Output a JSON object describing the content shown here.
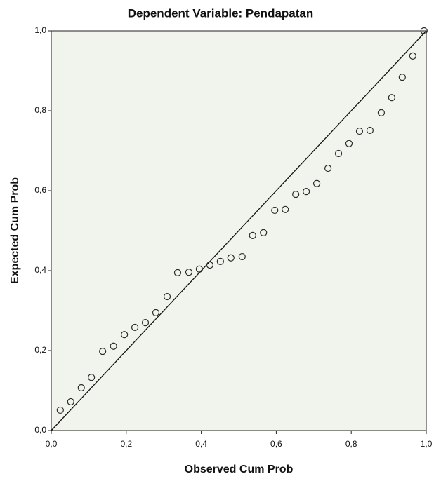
{
  "chart_data": {
    "type": "scatter",
    "title": "Dependent Variable: Pendapatan",
    "xlabel": "Observed Cum Prob",
    "ylabel": "Expected Cum Prob",
    "x": [
      0.024,
      0.052,
      0.08,
      0.107,
      0.137,
      0.166,
      0.195,
      0.223,
      0.251,
      0.279,
      0.309,
      0.337,
      0.367,
      0.395,
      0.423,
      0.451,
      0.479,
      0.509,
      0.537,
      0.566,
      0.596,
      0.624,
      0.652,
      0.68,
      0.708,
      0.738,
      0.766,
      0.794,
      0.822,
      0.85,
      0.88,
      0.908,
      0.936,
      0.964,
      0.994
    ],
    "values": [
      0.051,
      0.072,
      0.107,
      0.133,
      0.198,
      0.211,
      0.24,
      0.258,
      0.27,
      0.295,
      0.335,
      0.395,
      0.396,
      0.404,
      0.414,
      0.423,
      0.432,
      0.435,
      0.488,
      0.495,
      0.551,
      0.553,
      0.591,
      0.598,
      0.618,
      0.656,
      0.693,
      0.718,
      0.749,
      0.751,
      0.795,
      0.833,
      0.884,
      0.937,
      1.0
    ],
    "color": "#2a2a2a",
    "xlim": [
      0,
      1
    ],
    "ylim": [
      0,
      1
    ],
    "xticks": [
      {
        "value": 0,
        "label": "0,0"
      },
      {
        "value": 0.2,
        "label": "0,2"
      },
      {
        "value": 0.4,
        "label": "0,4"
      },
      {
        "value": 0.6,
        "label": "0,6"
      },
      {
        "value": 0.8,
        "label": "0,8"
      },
      {
        "value": 1,
        "label": "1,0"
      }
    ],
    "yticks": [
      {
        "value": 0,
        "label": "0,0"
      },
      {
        "value": 0.2,
        "label": "0,2"
      },
      {
        "value": 0.4,
        "label": "0,4"
      },
      {
        "value": 0.6,
        "label": "0,6"
      },
      {
        "value": 0.8,
        "label": "0,8"
      },
      {
        "value": 1,
        "label": "1,0"
      }
    ],
    "reference_line": true
  }
}
